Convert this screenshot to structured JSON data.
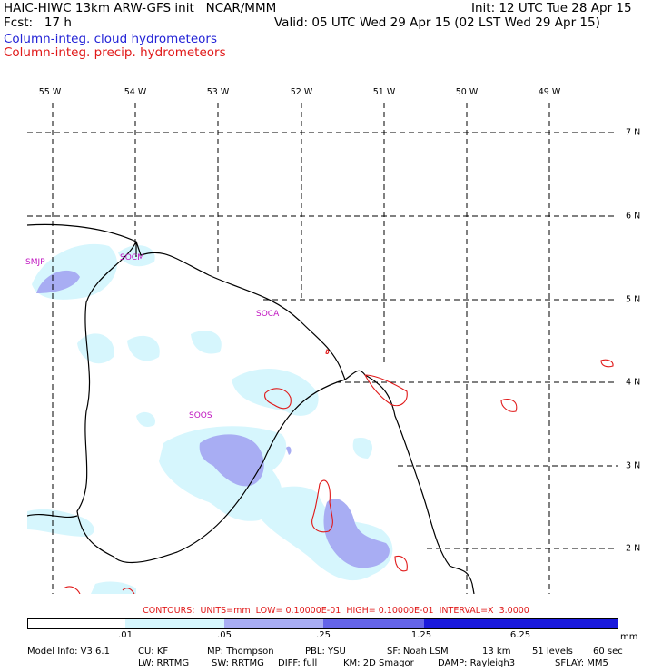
{
  "header": {
    "title": "HAIC-HIWC 13km ARW-GFS init   NCAR/MMM",
    "init": "Init: 12 UTC Tue 28 Apr 15",
    "fcst": "Fcst:   17 h",
    "valid": "Valid: 05 UTC Wed 29 Apr 15 (02 LST Wed 29 Apr 15)",
    "legend_cloud": "Column-integ. cloud hydrometeors",
    "legend_precip": "Column-integ. precip. hydrometeors"
  },
  "map": {
    "lon_labels": [
      "55 W",
      "54 W",
      "53 W",
      "52 W",
      "51 W",
      "50 W",
      "49 W"
    ],
    "lat_labels": [
      "7 N",
      "6 N",
      "5 N",
      "4 N",
      "3 N",
      "2 N"
    ],
    "stations": [
      "SMJP",
      "SOCM",
      "SOCA",
      "SOOS"
    ],
    "colors": {
      "land_line": "#000000",
      "grid": "#000000",
      "cloud_light": "#d6f6fd",
      "cloud_mid": "#a8adf3",
      "precip": "#e01818"
    }
  },
  "contour_note": "CONTOURS:  UNITS=mm  LOW= 0.10000E-01  HIGH= 0.10000E-01  INTERVAL=X  3.0000",
  "colorbar": {
    "ticks": [
      ".01",
      ".05",
      ".25",
      "1.25",
      "6.25"
    ],
    "units": "mm",
    "colors": [
      "#ffffff",
      "#d6f6fd",
      "#a8adf3",
      "#6464e8",
      "#1a1adc"
    ]
  },
  "model_info": {
    "line1": [
      "Model Info: V3.6.1",
      "CU: KF",
      "MP: Thompson",
      "PBL: YSU",
      "SF: Noah LSM",
      "13 km",
      "51 levels",
      "60 sec"
    ],
    "line2": [
      "LW: RRTMG",
      "SW: RRTMG",
      "DIFF: full",
      "KM: 2D Smagor",
      "DAMP: Rayleigh3",
      "SFLAY: MM5"
    ]
  }
}
